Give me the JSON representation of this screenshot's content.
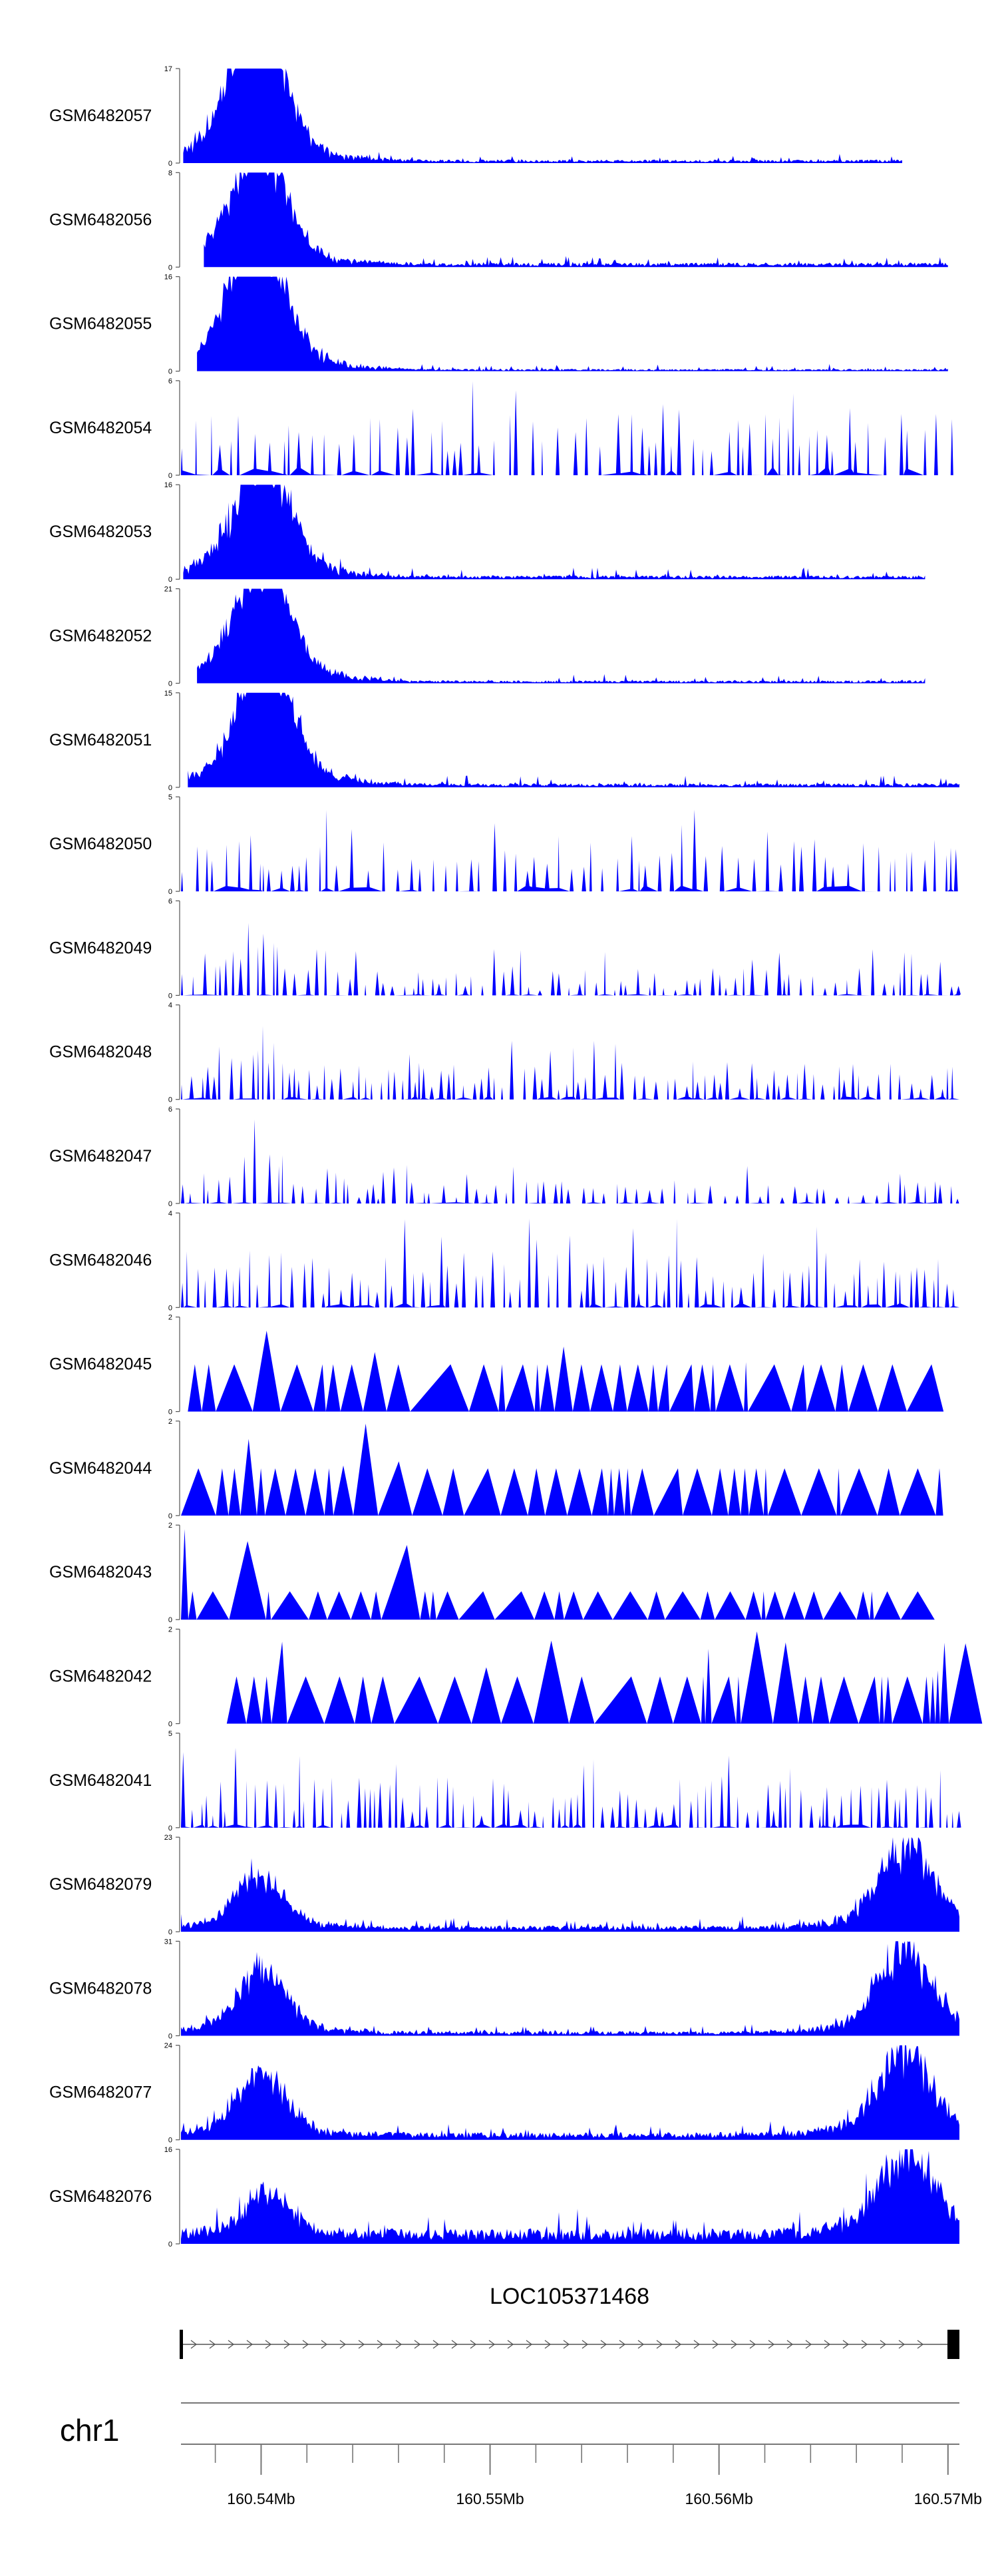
{
  "chart_data": {
    "type": "area",
    "region": {
      "chromosome": "chr1",
      "start": 160536500,
      "end": 160570500
    },
    "x_axis": {
      "unit": "Mb",
      "tick_labels": [
        "160.54Mb",
        "160.55Mb",
        "160.56Mb",
        "160.57Mb"
      ],
      "tick_values": [
        160540000,
        160550000,
        160560000,
        160570000
      ],
      "minor_tick_step": 2000
    },
    "color": "#0000ff",
    "tracks": [
      {
        "name": "GSM6482057",
        "ymax": 17,
        "style": "peaky",
        "peaks": [
          [
            160539500,
            17
          ],
          [
            160540100,
            14
          ]
        ],
        "bg": 0.5,
        "noise": 1.2,
        "coverage": [
          160536600,
          160568000
        ]
      },
      {
        "name": "GSM6482056",
        "ymax": 8,
        "style": "peaky",
        "peaks": [
          [
            160539700,
            8
          ],
          [
            160540200,
            4
          ]
        ],
        "bg": 0.3,
        "noise": 0.7,
        "coverage": [
          160537500,
          160570000
        ]
      },
      {
        "name": "GSM6482055",
        "ymax": 16,
        "style": "peaky",
        "peaks": [
          [
            160539700,
            16
          ],
          [
            160539900,
            13
          ]
        ],
        "bg": 0.3,
        "noise": 0.9,
        "coverage": [
          160537200,
          160570000
        ]
      },
      {
        "name": "GSM6482054",
        "ymax": 6,
        "style": "spiky",
        "density": 0.075,
        "hmin": 1.5,
        "hmax": 6,
        "coverage": [
          160536500,
          160570500
        ]
      },
      {
        "name": "GSM6482053",
        "ymax": 16,
        "style": "peaky",
        "peaks": [
          [
            160539700,
            16
          ],
          [
            160540800,
            8
          ]
        ],
        "bg": 0.5,
        "noise": 1.5,
        "coverage": [
          160536600,
          160569000
        ]
      },
      {
        "name": "GSM6482052",
        "ymax": 21,
        "style": "peaky",
        "peaks": [
          [
            160539800,
            21
          ],
          [
            160540600,
            11
          ]
        ],
        "bg": 0.5,
        "noise": 1.5,
        "coverage": [
          160537200,
          160569000
        ]
      },
      {
        "name": "GSM6482051",
        "ymax": 15,
        "style": "peaky",
        "peaks": [
          [
            160539900,
            15
          ],
          [
            160540600,
            9
          ]
        ],
        "bg": 0.5,
        "noise": 1.5,
        "coverage": [
          160536800,
          160570500
        ]
      },
      {
        "name": "GSM6482050",
        "ymax": 5,
        "style": "spiky",
        "density": 0.09,
        "hmin": 1,
        "hmax": 4.6,
        "coverage": [
          160536500,
          160570500
        ]
      },
      {
        "name": "GSM6482049",
        "ymax": 6,
        "style": "spiky",
        "density": 0.12,
        "hmin": 0.3,
        "hmax": 3,
        "peaks": [
          [
            160539700,
            5.5
          ]
        ],
        "coverage": [
          160536500,
          160570500
        ]
      },
      {
        "name": "GSM6482048",
        "ymax": 4,
        "style": "spiky",
        "density": 0.13,
        "hmin": 0.4,
        "hmax": 2.6,
        "peaks": [
          [
            160539700,
            3.8
          ]
        ],
        "coverage": [
          160536500,
          160570500
        ]
      },
      {
        "name": "GSM6482047",
        "ymax": 6,
        "style": "spiky",
        "density": 0.1,
        "hmin": 0.3,
        "hmax": 2.5,
        "peaks": [
          [
            160539800,
            5.8
          ]
        ],
        "coverage": [
          160536500,
          160570500
        ]
      },
      {
        "name": "GSM6482046",
        "ymax": 4,
        "style": "spiky",
        "density": 0.13,
        "hmin": 0.6,
        "hmax": 4,
        "coverage": [
          160536500,
          160570500
        ]
      },
      {
        "name": "GSM6482045",
        "ymax": 2,
        "style": "triangles",
        "density": 0.045,
        "hmin": 1,
        "hmax": 2,
        "coverage": [
          160536800,
          160569000
        ]
      },
      {
        "name": "GSM6482044",
        "ymax": 2,
        "style": "triangles",
        "density": 0.045,
        "hmin": 1,
        "hmax": 2,
        "coverage": [
          160536500,
          160570000
        ]
      },
      {
        "name": "GSM6482043",
        "ymax": 2,
        "style": "triangles",
        "density": 0.065,
        "hmin": 0.6,
        "hmax": 2,
        "coverage": [
          160536500,
          160570000
        ]
      },
      {
        "name": "GSM6482042",
        "ymax": 2,
        "style": "triangles",
        "density": 0.04,
        "hmin": 1,
        "hmax": 2,
        "coverage": [
          160538500,
          160570500
        ]
      },
      {
        "name": "GSM6482041",
        "ymax": 5,
        "style": "spiky",
        "density": 0.14,
        "hmin": 0.6,
        "hmax": 4.5,
        "coverage": [
          160536500,
          160570500
        ]
      },
      {
        "name": "GSM6482079",
        "ymax": 23,
        "style": "peaky",
        "peaks": [
          [
            160539900,
            15
          ],
          [
            160568200,
            23
          ]
        ],
        "bg": 1.2,
        "noise": 2.5,
        "coverage": [
          160536500,
          160570500
        ]
      },
      {
        "name": "GSM6482078",
        "ymax": 31,
        "style": "peaky",
        "peaks": [
          [
            160540000,
            24
          ],
          [
            160568100,
            31
          ]
        ],
        "bg": 1.2,
        "noise": 2.5,
        "coverage": [
          160536500,
          160570500
        ]
      },
      {
        "name": "GSM6482077",
        "ymax": 24,
        "style": "peaky",
        "peaks": [
          [
            160540000,
            18
          ],
          [
            160568100,
            24
          ]
        ],
        "bg": 1.5,
        "noise": 3,
        "coverage": [
          160536500,
          160570500
        ]
      },
      {
        "name": "GSM6482076",
        "ymax": 16,
        "style": "peaky",
        "peaks": [
          [
            160540300,
            8
          ],
          [
            160568200,
            16
          ]
        ],
        "bg": 2,
        "noise": 3.5,
        "coverage": [
          160536500,
          160570500
        ]
      }
    ],
    "gene": {
      "name": "LOC105371468",
      "start": 160536500,
      "end": 160570500,
      "strand": "+"
    },
    "ideogram": {
      "chromosome": "chr1"
    }
  }
}
